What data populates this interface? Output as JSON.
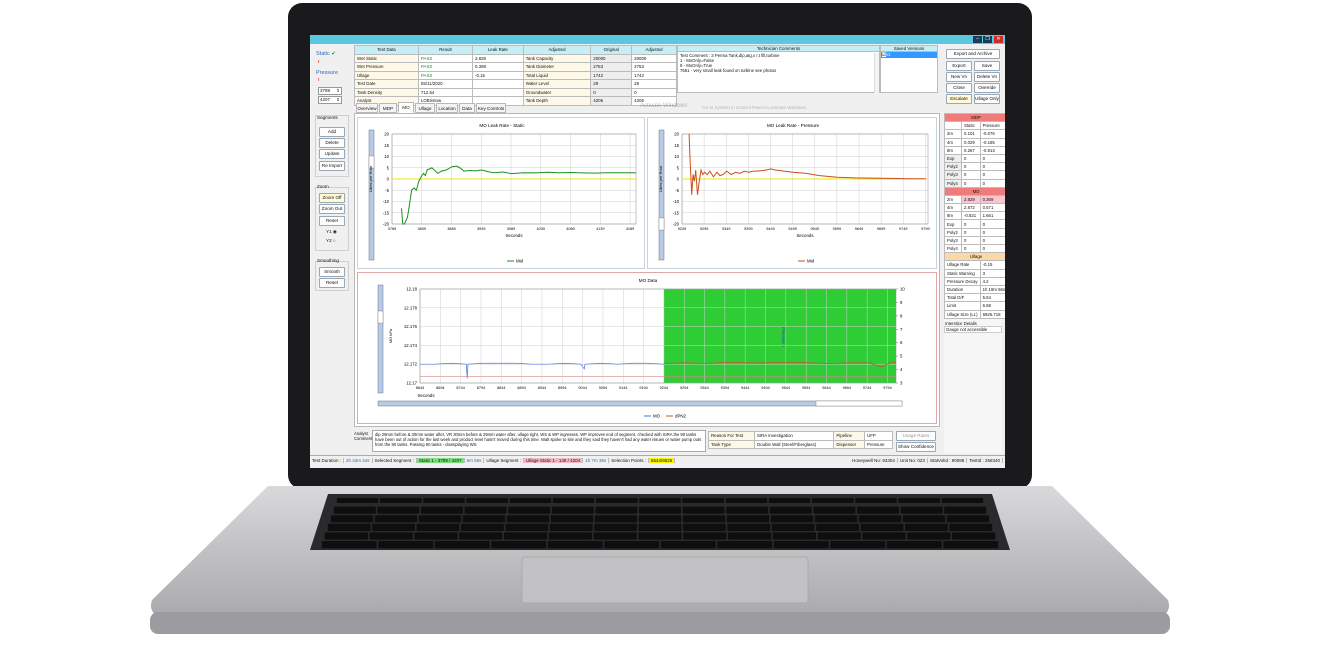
{
  "window": {
    "controls": [
      "minimize",
      "restore",
      "close"
    ]
  },
  "left_panel": {
    "static_label": "Static",
    "static_icon": "check-icon",
    "static_flag": "!",
    "pressure_label": "Pressure",
    "pressure_flag": "!",
    "spin1": "3789",
    "spin2": "4207",
    "segments": {
      "title": "Segments",
      "buttons": [
        "Add",
        "Delete",
        "Update",
        "Re Import"
      ]
    },
    "zoom": {
      "title": "Zoom",
      "buttons": [
        "Zoom Off",
        "Zoom Out",
        "Reset"
      ],
      "y1": "Y1",
      "y2": "Y2",
      "selected": "Y1"
    },
    "smoothing": {
      "title": "Smoothing",
      "buttons": [
        "Smooth",
        "Reset"
      ]
    }
  },
  "summary_table": {
    "headers": [
      "Test Data",
      "Result",
      "Leak Rate",
      "Adjusted",
      "Original",
      "Adjusted"
    ],
    "rows": [
      [
        "Wet Static",
        "PASS",
        "2.829",
        "Tank Capacity",
        "20000",
        "20000"
      ],
      [
        "Wet Pressure",
        "PASS",
        "0.369",
        "Tank Diameter",
        "2753",
        "2753"
      ],
      [
        "Ullage",
        "PASS",
        "-0.15",
        "Total Liquid",
        "1742",
        "1742"
      ],
      [
        "Test Date",
        "05/11/2020",
        "",
        "Water Level",
        "29",
        "29"
      ],
      [
        "Tank Density",
        "712.54",
        "",
        "Groundwater",
        "0",
        "0"
      ],
      [
        "Analyst",
        "LOBristow",
        "",
        "Tank Depth",
        "4206",
        "4206"
      ]
    ]
  },
  "technician_comments": {
    "header": "Technician Comments",
    "lines": [
      "Test Comment : 3 Perma Tank,dip,atg,v r,t fill,turbine",
      "1 - MoOnly=False",
      "5 - MoOnly=True",
      "7551 - very small leak found on turbine see photos"
    ]
  },
  "saved_versions": {
    "header": "Saved Versions",
    "items": [
      {
        "label": "v1",
        "checked": true
      }
    ]
  },
  "action_buttons": {
    "export_archive": "Export and Archive",
    "export": "Export",
    "save": "Save",
    "new_vn": "New Vn",
    "delete_vn": "Delete Vn",
    "close": "Close",
    "override": "Override",
    "escalate": "Escalate",
    "ullage_only": "Ullage Only"
  },
  "tabs": [
    {
      "label": "Overview"
    },
    {
      "label": "MDP"
    },
    {
      "label": "MO",
      "active": true
    },
    {
      "label": "Ullage"
    },
    {
      "label": "Location"
    },
    {
      "label": "Data"
    },
    {
      "label": "Key Controls"
    }
  ],
  "chart_data": [
    {
      "type": "line",
      "title": "MO Leak Rate - Static",
      "xlabel": "Seconds",
      "ylabel": "Litres per Hour",
      "ylim": [
        -20,
        20
      ],
      "yticks": [
        20,
        15,
        10,
        5,
        0,
        -5,
        -10,
        -15,
        -20
      ],
      "xticks": [
        "3789",
        "3839",
        "3889",
        "3939",
        "3989",
        "4039",
        "4089",
        "4139",
        "4189"
      ],
      "xlim": [
        3789,
        4199
      ],
      "grid": true,
      "legend": "bottom",
      "reference_line": {
        "y": 0,
        "color": "#f2e600"
      },
      "series": [
        {
          "name": "Mid",
          "color": "#1f8f1f",
          "x": [
            3805,
            3807,
            3810,
            3815,
            3818,
            3822,
            3826,
            3830,
            3834,
            3838,
            3842,
            3845,
            3848,
            3852,
            3856,
            3860,
            3866,
            3872,
            3880,
            3890,
            3898,
            3904,
            3910,
            3920,
            3930,
            3940,
            3950,
            3960,
            3975,
            3990,
            4010,
            4030,
            4050,
            4070,
            4090,
            4110,
            4130,
            4150,
            4170,
            4190,
            4199
          ],
          "y": [
            -13,
            -20,
            -20,
            -17,
            -12,
            -5,
            -4,
            -5,
            -1,
            1,
            2.5,
            1.5,
            4,
            4.5,
            5,
            4,
            2.5,
            3.5,
            4,
            5.5,
            5.7,
            4.8,
            3.5,
            3.8,
            3.6,
            4,
            3.3,
            2.8,
            3.1,
            2.4,
            2.8,
            2.7,
            3,
            2.8,
            2.9,
            2.7,
            2.6,
            2.8,
            2.8,
            2.8,
            2.7
          ]
        }
      ]
    },
    {
      "type": "line",
      "title": "MO Leak Rate - Pressure",
      "xlabel": "Seconds",
      "ylabel": "Litres per Hour",
      "ylim": [
        -20,
        20
      ],
      "yticks": [
        20,
        15,
        10,
        5,
        0,
        -5,
        -10,
        -15,
        -20
      ],
      "xticks": [
        "9249",
        "9299",
        "9349",
        "9399",
        "9449",
        "9499",
        "9549",
        "9599",
        "9649",
        "9699",
        "9749",
        "9799"
      ],
      "xlim": [
        9249,
        9805
      ],
      "grid": true,
      "legend": "bottom",
      "reference_line": {
        "y": 0,
        "color": "#f2e600"
      },
      "series": [
        {
          "name": "Mid",
          "color": "#c8501a",
          "x": [
            9265,
            9268,
            9271,
            9274,
            9277,
            9280,
            9284,
            9288,
            9292,
            9296,
            9300,
            9306,
            9312,
            9320,
            9328,
            9335,
            9342,
            9350,
            9360,
            9370,
            9380,
            9390,
            9400,
            9410,
            9420,
            9440,
            9450,
            9460,
            9480,
            9500,
            9530,
            9560,
            9600,
            9640,
            9680,
            9720,
            9760,
            9800
          ],
          "y": [
            20,
            5,
            -7,
            2,
            -1,
            4,
            -7,
            -1,
            4,
            2,
            3,
            2,
            3.5,
            1,
            3,
            1.5,
            2,
            3.5,
            2,
            3,
            2.5,
            3.5,
            3,
            3.5,
            3.5,
            4,
            4.5,
            4,
            3.5,
            3,
            2.5,
            1.5,
            0.8,
            0.5,
            0.4,
            0.3,
            0.1,
            0.1
          ]
        }
      ]
    },
    {
      "type": "line",
      "title": "MO Data",
      "xlabel": "Seconds",
      "ylabel": "MO kPa",
      "ylim": [
        12.17,
        12.18
      ],
      "yticks": [
        12.18,
        12.178,
        12.176,
        12.174,
        12.172,
        12.17
      ],
      "y2lim": [
        3,
        10
      ],
      "y2ticks": [
        10,
        9,
        8,
        7,
        6,
        5,
        4,
        3
      ],
      "xticks": [
        "8644",
        "8694",
        "8744",
        "8794",
        "8844",
        "8894",
        "8944",
        "8994",
        "9044",
        "9094",
        "9144",
        "9194",
        "9244",
        "9294",
        "9344",
        "9394",
        "9444",
        "9494",
        "9544",
        "9594",
        "9644",
        "9694",
        "9744",
        "9794"
      ],
      "xlim": [
        8644,
        9815
      ],
      "grid": true,
      "legend": "bottom",
      "shaded_region": {
        "x": [
          9244,
          9815
        ],
        "color": "#2ecc35",
        "label": "Pressure 1"
      },
      "series": [
        {
          "name": "MO",
          "color": "#4a6fe0",
          "axis": "left",
          "x": [
            8644,
            8680,
            8720,
            8758,
            8760,
            8762,
            8800,
            8840,
            8880,
            8920,
            8960,
            9000,
            9040,
            9048,
            9050,
            9052,
            9090,
            9130,
            9170,
            9200,
            9244
          ],
          "y": [
            12.172,
            12.172,
            12.1721,
            12.172,
            12.1705,
            12.172,
            12.1721,
            12.1721,
            12.1721,
            12.172,
            12.172,
            12.1721,
            12.172,
            12.1715,
            12.172,
            12.172,
            12.1721,
            12.172,
            12.1721,
            12.1721,
            12.172
          ]
        },
        {
          "name": "dPN2",
          "color": "#c8502a",
          "axis": "right",
          "x": [
            9244,
            9300,
            9350,
            9400,
            9450,
            9500,
            9550,
            9600,
            9650,
            9700,
            9750,
            9780,
            9800,
            9815
          ],
          "y": [
            4.45,
            4.5,
            4.45,
            4.55,
            4.5,
            4.5,
            4.55,
            4.5,
            4.45,
            4.5,
            4.5,
            4.2,
            4.5,
            4.55
          ]
        },
        {
          "color": "#d88888",
          "axis": "left",
          "x": [
            8644,
            9815
          ],
          "y": [
            12.1707,
            12.1707
          ]
        }
      ]
    }
  ],
  "right_panel": {
    "mdp": {
      "title": "MDP",
      "cols": [
        "Static",
        "Pressure"
      ],
      "rows": [
        [
          "2m",
          "0.101",
          "-0.076"
        ],
        [
          "4m",
          "0.029",
          "-0.185"
        ],
        [
          "8m",
          "0.267",
          "-0.913"
        ],
        [
          "Exp",
          "0",
          "0"
        ],
        [
          "Poly2",
          "0",
          "0"
        ],
        [
          "Poly3",
          "0",
          "0"
        ],
        [
          "Poly4",
          "0",
          "0"
        ]
      ]
    },
    "mo": {
      "title": "MO",
      "rows": [
        [
          "2m",
          "2.829",
          "0.369"
        ],
        [
          "4m",
          "2.872",
          "0.571"
        ],
        [
          "8m",
          "-0.821",
          "1.661"
        ],
        [
          "Exp",
          "0",
          "0"
        ],
        [
          "Poly2",
          "0",
          "0"
        ],
        [
          "Poly3",
          "0",
          "0"
        ],
        [
          "Poly4",
          "0",
          "0"
        ]
      ]
    },
    "ullage": {
      "title": "Ullage",
      "rows": [
        [
          "Ullage Rate",
          "-0.15"
        ],
        [
          "Static Warning",
          "3"
        ],
        [
          "Pressure Decay",
          "4.2"
        ],
        [
          "Duration",
          "1h 19m 56s"
        ],
        [
          "Total D/F",
          "5.54"
        ],
        [
          "Limit",
          "6.58"
        ],
        [
          "Ullage Size (Lt.)",
          "6925.718"
        ]
      ]
    },
    "interstice_label": "Interstice Details",
    "interstice_value": "Gauge not accessible"
  },
  "analyst": {
    "label": "Analyst Comment",
    "text": "dip 29mm before & 30mm water after, VR 30mm before & 29mm water after, ullage tight, WS & WP ingresses. WP improves end of segment, checked with SIRA the 90 tanks have been out of action for the last week and product level hasn't moved during this time. Walt spoke to site and they said they haven't had any water issues or water pump outs from the 90 tanks.  Passing 90 tanks - downplaying WS"
  },
  "reason_table": [
    [
      "Reason For Test",
      "SIRA Investigation",
      "Pipeline",
      "UFP"
    ],
    [
      "Tank Type",
      "Double Wall (Steel/Fiberglass)",
      "Dispenser",
      "Pressure"
    ]
  ],
  "bottom_buttons": {
    "usage_rates": "Usage Rates",
    "show_confidence": "Show Confidence"
  },
  "watermark": {
    "line1": "Activate Windows",
    "line2": "Go to System in Control Panel to activate Windows."
  },
  "status_bar": {
    "test_duration_label": "Test Duration :",
    "test_duration": "2h 43m 44s",
    "selected_segment_label": "Selected Segment :",
    "selected_segment": "Static 1 - 3789 / 4207",
    "selected_duration": "6m 58s",
    "ullage_segment_label": "Ullage Segment :",
    "ullage_segment": "Ullage Static 1 - 149 / 4204",
    "ullage_duration": "1h 7m 35s",
    "selection_points_label": "Selection Points :",
    "selection_points": "8644/9825",
    "honeywell": "Honeywell No: 93304",
    "unit": "Unit No: 023",
    "statvolid": "StatVolId : 90088",
    "testid": "TestId : 258340"
  }
}
